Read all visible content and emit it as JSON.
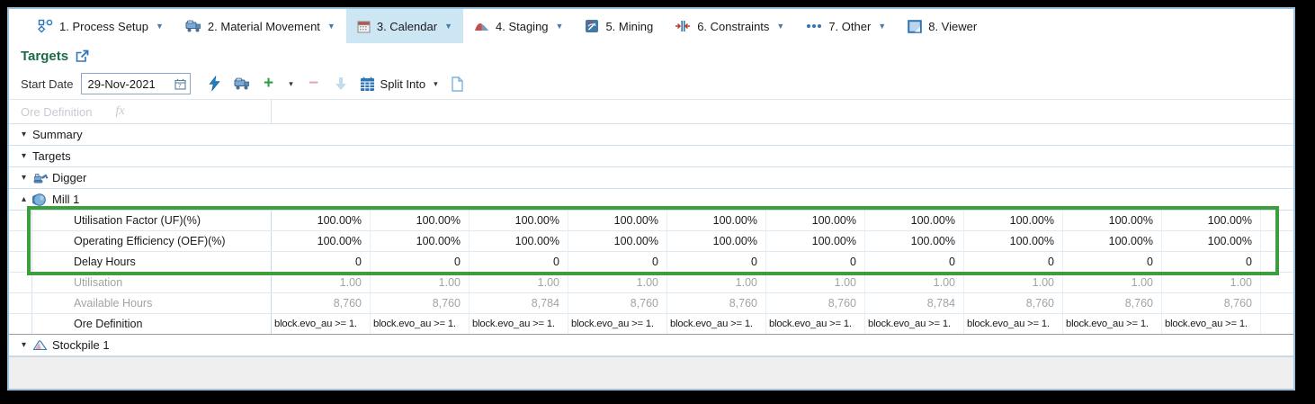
{
  "tabs": [
    {
      "label": "1. Process Setup",
      "icon": "process-setup-icon",
      "caret": true,
      "selected": false
    },
    {
      "label": "2. Material Movement",
      "icon": "material-movement-icon",
      "caret": true,
      "selected": false
    },
    {
      "label": "3. Calendar",
      "icon": "calendar-icon",
      "caret": true,
      "selected": true
    },
    {
      "label": "4. Staging",
      "icon": "staging-icon",
      "caret": true,
      "selected": false
    },
    {
      "label": "5. Mining",
      "icon": "mining-icon",
      "caret": false,
      "selected": false
    },
    {
      "label": "6. Constraints",
      "icon": "constraints-icon",
      "caret": true,
      "selected": false
    },
    {
      "label": "7. Other",
      "icon": "other-icon",
      "caret": true,
      "selected": false
    },
    {
      "label": "8. Viewer",
      "icon": "viewer-icon",
      "caret": false,
      "selected": false
    }
  ],
  "page": {
    "title": "Targets"
  },
  "toolbar": {
    "start_date_label": "Start Date",
    "start_date_value": "29-Nov-2021",
    "plus_label": "+",
    "dropdown_caret": "▾",
    "minus_label": "−",
    "split_into_label": "Split Into"
  },
  "formula_bar": {
    "label": "Ore Definition",
    "fx_label": "fx"
  },
  "tree": {
    "summary_label": "Summary",
    "targets_label": "Targets",
    "digger_label": "Digger",
    "mill_label": "Mill 1",
    "stockpile_label": "Stockpile 1",
    "collapsed_glyph": "▾",
    "expanded_glyph": "▴"
  },
  "grid": {
    "rows": [
      {
        "key": "utilisation-factor",
        "label": "Utilisation Factor (UF)(%)",
        "readonly": false,
        "formula": false,
        "values": [
          "100.00%",
          "100.00%",
          "100.00%",
          "100.00%",
          "100.00%",
          "100.00%",
          "100.00%",
          "100.00%",
          "100.00%",
          "100.00%"
        ]
      },
      {
        "key": "operating-efficiency",
        "label": "Operating Efficiency (OEF)(%)",
        "readonly": false,
        "formula": false,
        "values": [
          "100.00%",
          "100.00%",
          "100.00%",
          "100.00%",
          "100.00%",
          "100.00%",
          "100.00%",
          "100.00%",
          "100.00%",
          "100.00%"
        ]
      },
      {
        "key": "delay-hours",
        "label": "Delay Hours",
        "readonly": false,
        "formula": false,
        "values": [
          "0",
          "0",
          "0",
          "0",
          "0",
          "0",
          "0",
          "0",
          "0",
          "0"
        ]
      },
      {
        "key": "utilisation",
        "label": "Utilisation",
        "readonly": true,
        "formula": false,
        "values": [
          "1.00",
          "1.00",
          "1.00",
          "1.00",
          "1.00",
          "1.00",
          "1.00",
          "1.00",
          "1.00",
          "1.00"
        ]
      },
      {
        "key": "available-hours",
        "label": "Available Hours",
        "readonly": true,
        "formula": false,
        "values": [
          "8,760",
          "8,760",
          "8,784",
          "8,760",
          "8,760",
          "8,760",
          "8,784",
          "8,760",
          "8,760",
          "8,760"
        ]
      },
      {
        "key": "ore-definition",
        "label": "Ore Definition",
        "readonly": false,
        "formula": true,
        "values": [
          "block.evo_au >= 1.",
          "block.evo_au >= 1.",
          "block.evo_au >= 1.",
          "block.evo_au >= 1.",
          "block.evo_au >= 1.",
          "block.evo_au >= 1.",
          "block.evo_au >= 1.",
          "block.evo_au >= 1.",
          "block.evo_au >= 1.",
          "block.evo_au >= 1."
        ]
      }
    ]
  },
  "colors": {
    "header_green": "#1C6B48",
    "highlight_green": "#3C9E3C",
    "accent_blue": "#2E75B6",
    "selected_tab_bg": "#CDE6F4",
    "readonly_text": "#A3A3A3"
  }
}
